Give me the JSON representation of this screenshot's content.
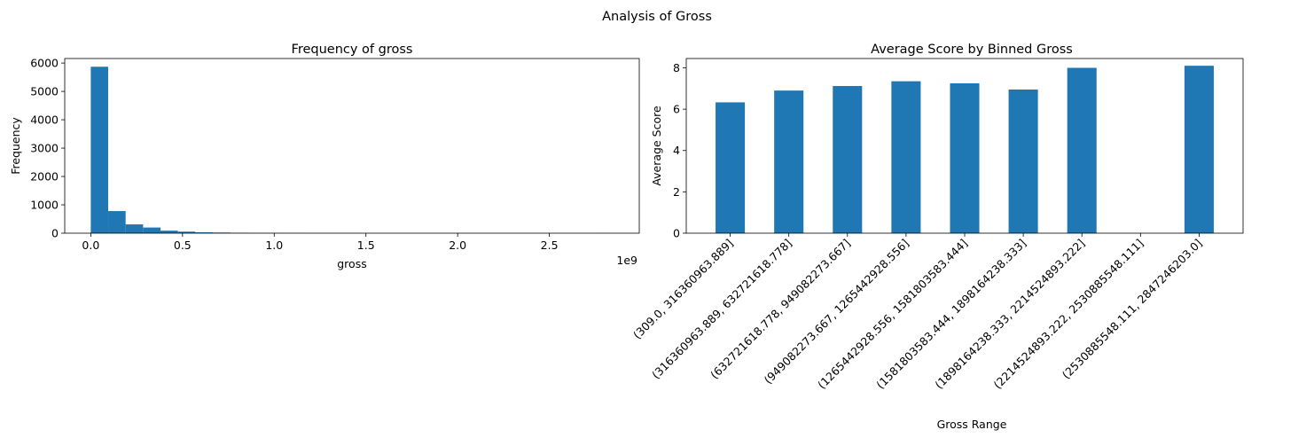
{
  "figure": {
    "suptitle": "Analysis of Gross"
  },
  "chart_data": [
    {
      "type": "bar",
      "title": "Frequency of gross",
      "xlabel": "gross",
      "ylabel": "Frequency",
      "x_offset_label": "1e9",
      "bar_color": "#1f77b4",
      "xlim": [
        -0.142,
        2.99
      ],
      "ylim": [
        0,
        6160
      ],
      "x_ticks": [
        0.0,
        0.5,
        1.0,
        1.5,
        2.0,
        2.5
      ],
      "x_tick_labels": [
        "0.0",
        "0.5",
        "1.0",
        "1.5",
        "2.0",
        "2.5"
      ],
      "y_ticks": [
        0,
        1000,
        2000,
        3000,
        4000,
        5000,
        6000
      ],
      "y_tick_labels": [
        "0",
        "1000",
        "2000",
        "3000",
        "4000",
        "5000",
        "6000"
      ],
      "bins": [
        {
          "x0": 0.0,
          "x1": 0.095,
          "count": 5870
        },
        {
          "x0": 0.095,
          "x1": 0.19,
          "count": 780
        },
        {
          "x0": 0.19,
          "x1": 0.285,
          "count": 310
        },
        {
          "x0": 0.285,
          "x1": 0.38,
          "count": 200
        },
        {
          "x0": 0.38,
          "x1": 0.475,
          "count": 90
        },
        {
          "x0": 0.475,
          "x1": 0.57,
          "count": 55
        },
        {
          "x0": 0.57,
          "x1": 0.665,
          "count": 30
        },
        {
          "x0": 0.665,
          "x1": 0.76,
          "count": 22
        },
        {
          "x0": 0.76,
          "x1": 0.855,
          "count": 15
        },
        {
          "x0": 0.855,
          "x1": 0.95,
          "count": 10
        },
        {
          "x0": 0.95,
          "x1": 1.045,
          "count": 8
        },
        {
          "x0": 1.045,
          "x1": 1.14,
          "count": 5
        },
        {
          "x0": 1.14,
          "x1": 1.235,
          "count": 2
        },
        {
          "x0": 1.235,
          "x1": 1.33,
          "count": 1
        },
        {
          "x0": 1.33,
          "x1": 1.425,
          "count": 1
        },
        {
          "x0": 1.425,
          "x1": 1.52,
          "count": 1
        },
        {
          "x0": 1.52,
          "x1": 1.615,
          "count": 0
        },
        {
          "x0": 1.615,
          "x1": 1.71,
          "count": 0
        },
        {
          "x0": 1.71,
          "x1": 1.805,
          "count": 0
        },
        {
          "x0": 1.805,
          "x1": 1.9,
          "count": 0
        },
        {
          "x0": 1.9,
          "x1": 1.995,
          "count": 0
        },
        {
          "x0": 1.995,
          "x1": 2.09,
          "count": 0
        },
        {
          "x0": 2.09,
          "x1": 2.185,
          "count": 0
        },
        {
          "x0": 2.185,
          "x1": 2.28,
          "count": 0
        },
        {
          "x0": 2.28,
          "x1": 2.375,
          "count": 0
        },
        {
          "x0": 2.375,
          "x1": 2.47,
          "count": 0
        },
        {
          "x0": 2.47,
          "x1": 2.565,
          "count": 0
        },
        {
          "x0": 2.565,
          "x1": 2.66,
          "count": 0
        },
        {
          "x0": 2.66,
          "x1": 2.755,
          "count": 0
        },
        {
          "x0": 2.755,
          "x1": 2.85,
          "count": 1
        }
      ]
    },
    {
      "type": "bar",
      "title": "Average Score by Binned Gross",
      "xlabel": "Gross Range",
      "ylabel": "Average Score",
      "bar_color": "#1f77b4",
      "ylim": [
        0,
        8.45
      ],
      "y_ticks": [
        0,
        2,
        4,
        6,
        8
      ],
      "y_tick_labels": [
        "0",
        "2",
        "4",
        "6",
        "8"
      ],
      "categories": [
        "(309.0, 316360963.889]",
        "(316360963.889, 632721618.778]",
        "(632721618.778, 949082273.667]",
        "(949082273.667, 1265442928.556]",
        "(1265442928.556, 1581803583.444]",
        "(1581803583.444, 1898164238.333]",
        "(1898164238.333, 2214524893.222]",
        "(2214524893.222, 2530885548.111]",
        "(2530885548.111, 2847246203.0]"
      ],
      "values": [
        6.33,
        6.9,
        7.12,
        7.35,
        7.25,
        6.95,
        8.0,
        null,
        8.1
      ]
    }
  ]
}
